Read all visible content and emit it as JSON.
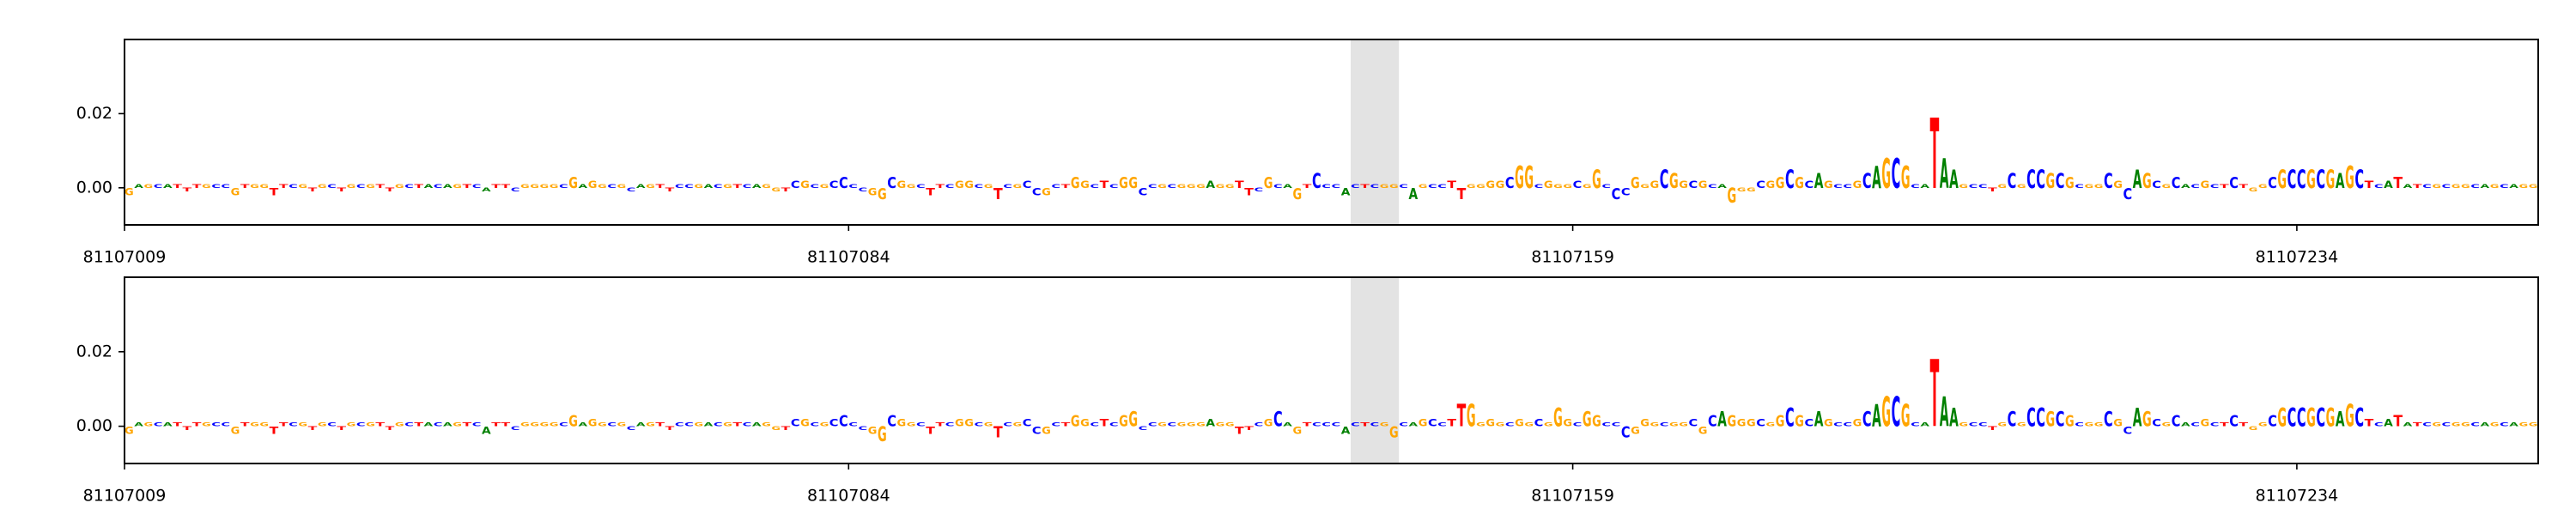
{
  "chart_data": [
    {
      "type": "logo",
      "sequence": "GAGCATTTGCCGTGGTTCGTGCTGCGTTGCTACAGTCATTCGGGGCGAGGCGCAGTTCCGACGTCAGGTCGCGCCCCGGCGGCTTCGGCGTCGCCGCTGGCTCGGCCGCGGGAGGTTCGCAGTCCCACTCGGCAGCCTTGGGGCGGCGGGCGGCCCGGGCGGCGCAGGGCGGCGCAGCCGCAGCGCATAAGCCTGCGCCGCGCGGCGCAGCGCACGCTCTGGCGCCGCGAGCTCATATCGCGGCAGCAGG",
      "values": [
        -0.002,
        0.001,
        0.001,
        0.001,
        0.001,
        0.001,
        -0.001,
        0.001,
        0.001,
        0.001,
        0.001,
        -0.002,
        0.001,
        0.001,
        0.001,
        -0.002,
        0.001,
        0.001,
        0.001,
        -0.001,
        0.001,
        0.001,
        -0.001,
        0.001,
        0.001,
        0.001,
        0.001,
        -0.001,
        0.001,
        0.001,
        0.001,
        0.001,
        0.001,
        0.001,
        0.001,
        0.001,
        0.001,
        -0.001,
        0.001,
        0.001,
        -0.001,
        0.001,
        0.001,
        0.001,
        0.001,
        0.001,
        0.003,
        0.001,
        0.002,
        0.001,
        0.001,
        0.001,
        -0.001,
        0.001,
        0.001,
        0.001,
        -0.001,
        0.001,
        0.001,
        0.001,
        0.001,
        0.001,
        0.001,
        0.001,
        0.001,
        0.001,
        0.001,
        -0.001,
        -0.001,
        0.002,
        0.002,
        0.001,
        0.001,
        0.002,
        0.003,
        0.001,
        -0.001,
        -0.002,
        -0.003,
        0.003,
        0.002,
        0.001,
        0.001,
        -0.002,
        0.001,
        0.001,
        0.002,
        0.002,
        0.001,
        0.001,
        -0.003,
        0.001,
        0.001,
        0.002,
        -0.002,
        -0.002,
        0.001,
        0.001,
        0.003,
        0.002,
        0.001,
        0.002,
        0.001,
        0.003,
        0.003,
        -0.002,
        0.001,
        0.001,
        0.001,
        0.001,
        0.001,
        0.001,
        0.002,
        0.001,
        0.001,
        0.002,
        -0.002,
        -0.001,
        0.003,
        0.001,
        0.001,
        -0.003,
        0.001,
        0.004,
        0.001,
        0.001,
        -0.002,
        0.001,
        0.001,
        0.001,
        0.001,
        0.001,
        0.001,
        -0.003,
        0.001,
        0.001,
        0.001,
        0.002,
        -0.003,
        0.001,
        0.001,
        0.002,
        0.002,
        0.003,
        0.006,
        0.006,
        0.001,
        0.002,
        0.001,
        0.001,
        0.002,
        0.001,
        0.005,
        0.001,
        -0.003,
        -0.002,
        0.003,
        0.001,
        0.002,
        0.005,
        0.004,
        0.002,
        0.002,
        0.002,
        0.001,
        0.001,
        -0.004,
        -0.001,
        -0.001,
        0.002,
        0.002,
        0.003,
        0.005,
        0.003,
        0.002,
        0.004,
        0.002,
        0.001,
        0.001,
        0.002,
        0.004,
        0.006,
        0.008,
        0.008,
        0.006,
        0.001,
        0.001,
        0.019,
        0.008,
        0.005,
        0.001,
        0.001,
        0.001,
        -0.001,
        0.001,
        0.004,
        0.001,
        0.005,
        0.005,
        0.004,
        0.004,
        0.003,
        0.001,
        0.001,
        0.001,
        0.004,
        0.002,
        -0.003,
        0.005,
        0.004,
        0.002,
        0.001,
        0.003,
        0.001,
        0.001,
        0.002,
        0.001,
        0.001,
        0.003,
        0.001,
        -0.001,
        0.001,
        0.003,
        0.005,
        0.005,
        0.005,
        0.005,
        0.005,
        0.005,
        0.004,
        0.006,
        0.005,
        0.002,
        0.001,
        0.002,
        0.003,
        0.001,
        0.001,
        0.001,
        0.001,
        0.001,
        0.001,
        0.001,
        0.001,
        0.001,
        0.001,
        0.001,
        0.001,
        0.001,
        0.001
      ],
      "colors": {
        "A": "#008000",
        "C": "#0000ff",
        "G": "#ffa500",
        "T": "#ff0000"
      },
      "highlight": [
        81107136,
        81107141
      ],
      "xlim": [
        81107009,
        81107259
      ],
      "xticks": [
        81107009,
        81107084,
        81107159,
        81107234
      ],
      "ylim": [
        -0.01,
        0.04
      ],
      "yticks": [
        {
          "value": 0,
          "label": "0.00"
        },
        {
          "value": 0.02,
          "label": "0.02"
        }
      ]
    },
    {
      "type": "logo",
      "sequence": "GAGCATTTGCCGTGGTTCGTGCTGCGTTGCTACAGTCATTCGGGGCGAGGCGCAGTTCCGACGTCAGGTCGCGCCCCGGCGGCTTCGGCGTCGCCGCTGGCTCGGCCGCGGGAGGTTCGCAGTCCCACTCGGCAGCCTTGGGGCGGCGGGCGGCCCGGGCGGCGCAGGGCGGCGCAGCCGCAGCGCATAAGCCTGCGCCGCGCGGCGCAGCGCACGCTCTGGCGCCGCGAGCTCATATCGCGGCAGCAGG",
      "values": [
        -0.002,
        0.001,
        0.001,
        0.001,
        0.001,
        0.001,
        -0.001,
        0.001,
        0.001,
        0.001,
        0.001,
        -0.002,
        0.001,
        0.001,
        0.001,
        -0.002,
        0.001,
        0.001,
        0.001,
        -0.001,
        0.001,
        0.001,
        -0.001,
        0.001,
        0.001,
        0.001,
        0.001,
        -0.001,
        0.001,
        0.001,
        0.001,
        0.001,
        0.001,
        0.001,
        0.001,
        0.001,
        0.001,
        -0.002,
        0.001,
        0.001,
        -0.001,
        0.001,
        0.001,
        0.001,
        0.001,
        0.001,
        0.003,
        0.001,
        0.002,
        0.001,
        0.001,
        0.001,
        -0.001,
        0.001,
        0.001,
        0.001,
        -0.001,
        0.001,
        0.001,
        0.001,
        0.001,
        0.001,
        0.001,
        0.001,
        0.001,
        0.001,
        0.001,
        -0.001,
        -0.001,
        0.002,
        0.002,
        0.001,
        0.001,
        0.002,
        0.003,
        0.001,
        -0.001,
        -0.002,
        -0.004,
        0.003,
        0.002,
        0.001,
        0.001,
        -0.002,
        0.001,
        0.001,
        0.002,
        0.002,
        0.001,
        0.001,
        -0.003,
        0.001,
        0.001,
        0.002,
        -0.002,
        -0.002,
        0.001,
        0.001,
        0.003,
        0.002,
        0.001,
        0.002,
        0.001,
        0.003,
        0.004,
        -0.001,
        0.001,
        0.001,
        0.001,
        0.001,
        0.001,
        0.001,
        0.002,
        0.001,
        0.001,
        -0.002,
        -0.001,
        0.001,
        0.002,
        0.004,
        0.001,
        -0.002,
        0.001,
        0.001,
        0.001,
        0.001,
        -0.002,
        0.001,
        0.001,
        0.001,
        0.001,
        -0.003,
        0.001,
        0.001,
        0.002,
        0.002,
        0.001,
        0.002,
        0.006,
        0.006,
        0.001,
        0.002,
        0.001,
        0.001,
        0.002,
        0.001,
        0.002,
        0.001,
        0.005,
        0.002,
        0.001,
        0.004,
        0.003,
        0.001,
        0.001,
        -0.003,
        -0.002,
        0.002,
        0.001,
        0.001,
        0.001,
        0.001,
        0.002,
        -0.002,
        0.003,
        0.004,
        0.003,
        0.002,
        0.002,
        0.002,
        0.001,
        0.003,
        0.005,
        0.003,
        0.002,
        0.004,
        0.002,
        0.001,
        0.001,
        0.002,
        0.004,
        0.006,
        0.008,
        0.008,
        0.006,
        0.001,
        0.001,
        0.018,
        0.008,
        0.005,
        0.001,
        0.001,
        0.001,
        -0.001,
        0.001,
        0.004,
        0.001,
        0.005,
        0.005,
        0.004,
        0.004,
        0.003,
        0.001,
        0.001,
        0.001,
        0.004,
        0.002,
        -0.002,
        0.005,
        0.004,
        0.002,
        0.001,
        0.003,
        0.001,
        0.001,
        0.002,
        0.001,
        0.001,
        0.003,
        0.001,
        -0.001,
        0.001,
        0.003,
        0.005,
        0.005,
        0.005,
        0.005,
        0.005,
        0.005,
        0.004,
        0.006,
        0.005,
        0.002,
        0.001,
        0.002,
        0.003,
        0.001,
        0.001,
        0.001,
        0.001,
        0.001,
        0.001,
        0.001,
        0.001,
        0.001,
        0.001,
        0.001,
        0.001,
        0.001,
        0.001
      ],
      "colors": {
        "A": "#008000",
        "C": "#0000ff",
        "G": "#ffa500",
        "T": "#ff0000"
      },
      "highlight": [
        81107136,
        81107141
      ],
      "xlim": [
        81107009,
        81107259
      ],
      "xticks": [
        81107009,
        81107084,
        81107159,
        81107234
      ],
      "ylim": [
        -0.01,
        0.04
      ],
      "yticks": [
        {
          "value": 0,
          "label": "0.00"
        },
        {
          "value": 0.02,
          "label": "0.02"
        }
      ]
    }
  ]
}
